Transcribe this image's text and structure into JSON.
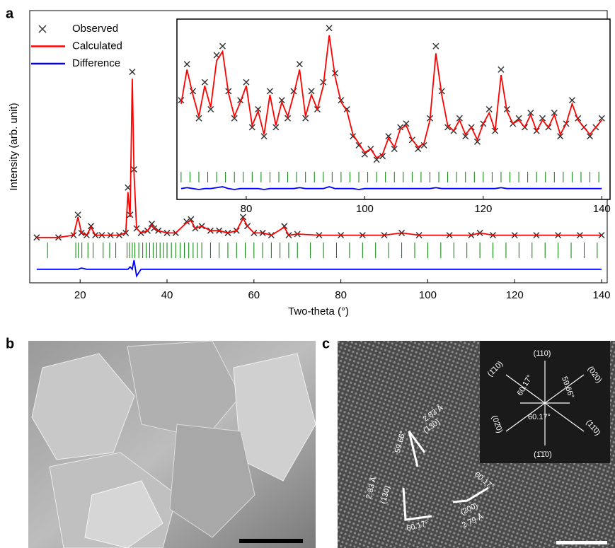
{
  "panel_labels": [
    "a",
    "b",
    "c"
  ],
  "chart_data": [
    {
      "type": "line",
      "xlabel": "Two-theta (°)",
      "ylabel": "Intensity (arb. unit)",
      "xlim": [
        8.4,
        141.3
      ],
      "xticks": [
        20,
        40,
        60,
        80,
        100,
        120,
        140
      ],
      "ylim": [
        -20,
        100
      ],
      "legend": "upper left",
      "x": [
        10,
        15,
        18.5,
        19.5,
        20.3,
        21.5,
        22.5,
        23.5,
        25,
        27,
        29,
        30.5,
        31,
        31.5,
        32,
        32.4,
        33,
        34,
        35.5,
        36.5,
        37,
        38,
        40,
        42,
        44.5,
        45.5,
        46.5,
        48,
        50,
        52,
        54,
        56,
        57.5,
        58.5,
        60,
        62,
        64,
        67,
        68,
        70,
        75,
        80,
        85,
        90,
        94,
        98,
        105,
        110,
        112,
        115,
        120,
        125,
        130,
        135,
        140
      ],
      "series": [
        {
          "name": "Observed",
          "color": "#333333",
          "marker": "x",
          "values": [
            0,
            0,
            1,
            10,
            2,
            1,
            5,
            1,
            1,
            1,
            1,
            2,
            22,
            10,
            73,
            30,
            4,
            2,
            3,
            6,
            4,
            3,
            2,
            2,
            7,
            8,
            4,
            5,
            3,
            3,
            2,
            3,
            9,
            5,
            2,
            2,
            1,
            5,
            1,
            1.5,
            1,
            1,
            1,
            1,
            2,
            1,
            1,
            1,
            2,
            1,
            1,
            1,
            1,
            1,
            1
          ]
        },
        {
          "name": "Calculated",
          "color": "#ff0000",
          "marker": "line",
          "values": [
            0,
            0,
            1,
            9,
            2,
            1,
            4.5,
            1,
            1,
            1,
            1,
            2,
            20,
            9,
            70,
            28,
            4,
            2,
            3,
            5.5,
            4,
            3,
            2,
            2,
            6.5,
            7.5,
            4,
            5,
            3,
            3,
            2,
            3,
            8.5,
            5,
            2,
            2,
            1,
            4.5,
            1,
            1.5,
            1,
            1,
            1,
            1,
            2,
            1,
            1,
            1,
            2,
            1,
            1,
            1,
            1,
            1,
            1
          ]
        },
        {
          "name": "Difference",
          "color": "#0000ff",
          "marker": "line",
          "values": [
            -14,
            -14,
            -14,
            -14,
            -13.5,
            -14,
            -14,
            -14,
            -14,
            -14,
            -14,
            -14,
            -14,
            -13,
            -14,
            -10,
            -17,
            -14,
            -14,
            -14,
            -14,
            -14,
            -14,
            -14,
            -14,
            -14,
            -14,
            -14,
            -14,
            -14,
            -14,
            -14,
            -14,
            -14,
            -14,
            -14,
            -14,
            -14,
            -14,
            -14,
            -14,
            -14,
            -14,
            -14,
            -14,
            -14,
            -14,
            -14,
            -14,
            -14,
            -14,
            -14,
            -14,
            -14,
            -14
          ]
        }
      ],
      "reflection_color": "#008000",
      "reflections": [
        12.5,
        19,
        19.6,
        20.4,
        21.8,
        23,
        25.3,
        26.8,
        28.2,
        30.8,
        31.4,
        32,
        32.6,
        33.5,
        34.4,
        35.2,
        36,
        36.8,
        37.6,
        38.4,
        39.2,
        40,
        41,
        42,
        43,
        44,
        45,
        46,
        47,
        48,
        50,
        52,
        54,
        56,
        58,
        60,
        62,
        64,
        66,
        68,
        70,
        73,
        76,
        79,
        82,
        85,
        88,
        91,
        94,
        97,
        100,
        103,
        106,
        109,
        112,
        115,
        118,
        121,
        124,
        127,
        130,
        133,
        136,
        139
      ]
    },
    {
      "type": "line",
      "xlim": [
        68.3,
        141.4
      ],
      "xticks": [
        80,
        100,
        120,
        140
      ],
      "ylim": [
        0,
        100
      ],
      "x": [
        69,
        70,
        71,
        72,
        73,
        74,
        75,
        76,
        77,
        78,
        79,
        80,
        81,
        82,
        83,
        84,
        85,
        86,
        87,
        88,
        89,
        90,
        91,
        92,
        93,
        94,
        95,
        96,
        97,
        98,
        99,
        100,
        101,
        102,
        103,
        104,
        105,
        106,
        107,
        108,
        109,
        110,
        111,
        112,
        113,
        114,
        115,
        116,
        117,
        118,
        119,
        120,
        121,
        122,
        123,
        124,
        125,
        126,
        127,
        128,
        129,
        130,
        131,
        132,
        133,
        134,
        135,
        136,
        137,
        138,
        139,
        140
      ],
      "series": [
        {
          "color": "#333333",
          "marker": "x",
          "values": [
            55,
            75,
            60,
            45,
            65,
            50,
            80,
            85,
            60,
            45,
            55,
            65,
            40,
            50,
            35,
            60,
            40,
            55,
            45,
            60,
            75,
            45,
            60,
            50,
            65,
            95,
            70,
            55,
            50,
            35,
            30,
            25,
            28,
            22,
            24,
            35,
            28,
            40,
            42,
            33,
            28,
            30,
            45,
            85,
            60,
            40,
            38,
            45,
            35,
            40,
            32,
            42,
            50,
            38,
            72,
            50,
            42,
            45,
            40,
            48,
            38,
            45,
            40,
            48,
            35,
            42,
            55,
            45,
            40,
            35,
            40,
            45
          ]
        },
        {
          "color": "#ff0000",
          "marker": "line",
          "values": [
            53,
            72,
            58,
            46,
            63,
            51,
            77,
            82,
            59,
            46,
            54,
            63,
            41,
            49,
            36,
            58,
            41,
            54,
            46,
            58,
            72,
            46,
            58,
            50,
            63,
            91,
            68,
            54,
            49,
            36,
            31,
            26,
            28,
            23,
            25,
            34,
            29,
            39,
            41,
            33,
            29,
            31,
            44,
            81,
            58,
            41,
            38,
            44,
            36,
            40,
            33,
            42,
            48,
            38,
            69,
            49,
            42,
            44,
            40,
            47,
            38,
            44,
            40,
            47,
            36,
            42,
            53,
            44,
            40,
            36,
            40,
            44
          ]
        },
        {
          "color": "#0000ff",
          "marker": "line",
          "values": [
            6,
            6.5,
            6,
            5.5,
            6,
            6,
            6.5,
            7,
            6,
            5.5,
            6,
            6,
            6,
            6,
            5.5,
            6,
            6,
            6,
            6,
            6,
            6.5,
            6,
            6,
            6,
            6,
            7,
            6,
            6,
            6,
            6,
            5.5,
            6,
            6,
            6,
            6,
            6,
            6,
            6,
            6,
            6,
            6,
            6,
            6,
            6.5,
            6,
            6,
            6,
            6,
            6,
            6,
            6,
            6,
            6,
            6,
            6.5,
            6,
            6,
            6,
            6,
            6,
            6,
            6,
            6,
            6,
            6,
            6,
            6,
            6,
            6,
            6,
            6,
            6
          ]
        }
      ],
      "reflection_color": "#008000",
      "reflections": [
        69,
        70.5,
        72,
        73.5,
        75,
        76.5,
        78,
        79.5,
        81,
        82.5,
        84,
        85.5,
        87,
        88.5,
        90,
        91.5,
        93,
        94.5,
        96,
        97.5,
        99,
        100.5,
        102,
        103.5,
        105,
        106.5,
        108,
        109.5,
        111,
        112.5,
        114,
        115.5,
        117,
        118.5,
        120,
        121.5,
        123,
        124.5,
        126,
        127.5,
        129,
        130.5,
        132,
        133.5,
        135,
        136.5,
        138,
        139.5
      ]
    }
  ],
  "panel_c": {
    "annotations": [
      "(110)",
      "(1̄10)",
      "(020)",
      "60.17°",
      "59.66°",
      "(02̄0)",
      "60.17°",
      "(11̄0)",
      "(1̄1̄0)",
      "2.83 Å",
      "(130)",
      "59.66°",
      "2.83 Å",
      "(130)",
      "60.17°",
      "60.17°",
      "(200)",
      "2.79 Å"
    ]
  }
}
